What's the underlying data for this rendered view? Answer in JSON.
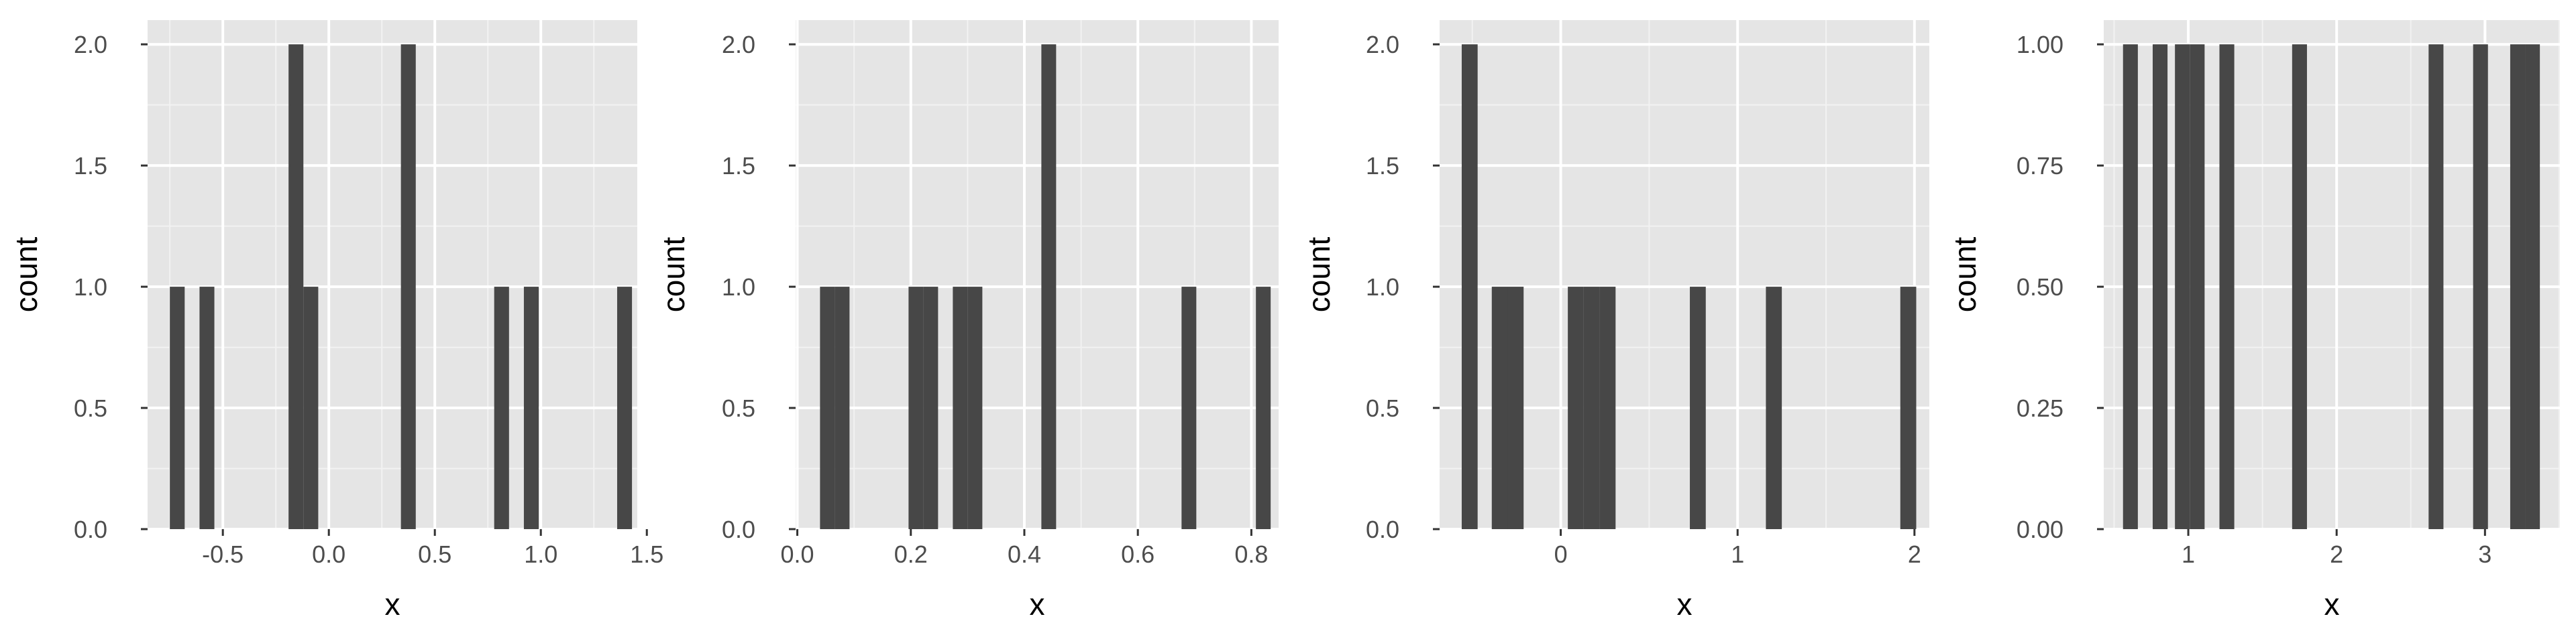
{
  "colors": {
    "panel_background": "#e5e5e5",
    "grid_major": "#ffffff",
    "grid_minor": "#f2f2f2",
    "bar_fill": "#474747",
    "tick_label": "#4d4d4d",
    "axis_title": "#000000"
  },
  "chart_data": [
    {
      "type": "bar",
      "xlabel": "x",
      "ylabel": "count",
      "xlim": [
        -0.855,
        1.455
      ],
      "ylim": [
        0,
        2.1
      ],
      "x_ticks": [
        -0.5,
        0.0,
        0.5,
        1.0,
        1.5
      ],
      "x_tick_labels": [
        "-0.5",
        "0.0",
        "0.5",
        "1.0",
        "1.5"
      ],
      "y_ticks": [
        0.0,
        0.5,
        1.0,
        1.5,
        2.0
      ],
      "y_tick_labels": [
        "0.0",
        "0.5",
        "1.0",
        "1.5",
        "2.0"
      ],
      "grid": true,
      "bars": [
        {
          "x0": -0.75,
          "x1": -0.68,
          "count": 1
        },
        {
          "x0": -0.61,
          "x1": -0.54,
          "count": 1
        },
        {
          "x0": -0.19,
          "x1": -0.12,
          "count": 2
        },
        {
          "x0": -0.12,
          "x1": -0.05,
          "count": 1
        },
        {
          "x0": 0.34,
          "x1": 0.41,
          "count": 2
        },
        {
          "x0": 0.78,
          "x1": 0.85,
          "count": 1
        },
        {
          "x0": 0.92,
          "x1": 0.99,
          "count": 1
        },
        {
          "x0": 1.36,
          "x1": 1.43,
          "count": 1
        }
      ]
    },
    {
      "type": "bar",
      "xlabel": "x",
      "ylabel": "count",
      "xlim": [
        -0.003,
        0.848
      ],
      "ylim": [
        0,
        2.1
      ],
      "x_ticks": [
        0.0,
        0.2,
        0.4,
        0.6,
        0.8
      ],
      "x_tick_labels": [
        "0.0",
        "0.2",
        "0.4",
        "0.6",
        "0.8"
      ],
      "y_ticks": [
        0.0,
        0.5,
        1.0,
        1.5,
        2.0
      ],
      "y_tick_labels": [
        "0.0",
        "0.5",
        "1.0",
        "1.5",
        "2.0"
      ],
      "grid": true,
      "bars": [
        {
          "x0": 0.04,
          "x1": 0.066,
          "count": 1
        },
        {
          "x0": 0.066,
          "x1": 0.092,
          "count": 1
        },
        {
          "x0": 0.196,
          "x1": 0.222,
          "count": 1
        },
        {
          "x0": 0.222,
          "x1": 0.248,
          "count": 1
        },
        {
          "x0": 0.274,
          "x1": 0.3,
          "count": 1
        },
        {
          "x0": 0.3,
          "x1": 0.326,
          "count": 1
        },
        {
          "x0": 0.43,
          "x1": 0.456,
          "count": 2
        },
        {
          "x0": 0.677,
          "x1": 0.703,
          "count": 1
        },
        {
          "x0": 0.808,
          "x1": 0.834,
          "count": 1
        }
      ]
    },
    {
      "type": "bar",
      "xlabel": "x",
      "ylabel": "count",
      "xlim": [
        -0.685,
        2.084
      ],
      "ylim": [
        0,
        2.1
      ],
      "x_ticks": [
        0,
        1,
        2
      ],
      "x_tick_labels": [
        "0",
        "1",
        "2"
      ],
      "y_ticks": [
        0.0,
        0.5,
        1.0,
        1.5,
        2.0
      ],
      "y_tick_labels": [
        "0.0",
        "0.5",
        "1.0",
        "1.5",
        "2.0"
      ],
      "grid": true,
      "bars": [
        {
          "x0": -0.56,
          "x1": -0.47,
          "count": 2
        },
        {
          "x0": -0.39,
          "x1": -0.3,
          "count": 1
        },
        {
          "x0": -0.3,
          "x1": -0.21,
          "count": 1
        },
        {
          "x0": 0.04,
          "x1": 0.13,
          "count": 1
        },
        {
          "x0": 0.13,
          "x1": 0.22,
          "count": 1
        },
        {
          "x0": 0.22,
          "x1": 0.31,
          "count": 1
        },
        {
          "x0": 0.73,
          "x1": 0.82,
          "count": 1
        },
        {
          "x0": 1.16,
          "x1": 1.25,
          "count": 1
        },
        {
          "x0": 1.92,
          "x1": 2.01,
          "count": 1
        }
      ]
    },
    {
      "type": "bar",
      "xlabel": "x",
      "ylabel": "count",
      "xlim": [
        0.43,
        3.505
      ],
      "ylim": [
        0,
        1.05
      ],
      "x_ticks": [
        1,
        2,
        3
      ],
      "x_tick_labels": [
        "1",
        "2",
        "3"
      ],
      "y_ticks": [
        0.0,
        0.25,
        0.5,
        0.75,
        1.0
      ],
      "y_tick_labels": [
        "0.00",
        "0.25",
        "0.50",
        "0.75",
        "1.00"
      ],
      "grid": true,
      "bars": [
        {
          "x0": 0.56,
          "x1": 0.66,
          "count": 1
        },
        {
          "x0": 0.76,
          "x1": 0.86,
          "count": 1
        },
        {
          "x0": 0.91,
          "x1": 1.01,
          "count": 1
        },
        {
          "x0": 1.01,
          "x1": 1.11,
          "count": 1
        },
        {
          "x0": 1.21,
          "x1": 1.31,
          "count": 1
        },
        {
          "x0": 1.7,
          "x1": 1.8,
          "count": 1
        },
        {
          "x0": 2.62,
          "x1": 2.72,
          "count": 1
        },
        {
          "x0": 2.92,
          "x1": 3.02,
          "count": 1
        },
        {
          "x0": 3.17,
          "x1": 3.27,
          "count": 1
        },
        {
          "x0": 3.27,
          "x1": 3.37,
          "count": 1
        }
      ]
    }
  ]
}
